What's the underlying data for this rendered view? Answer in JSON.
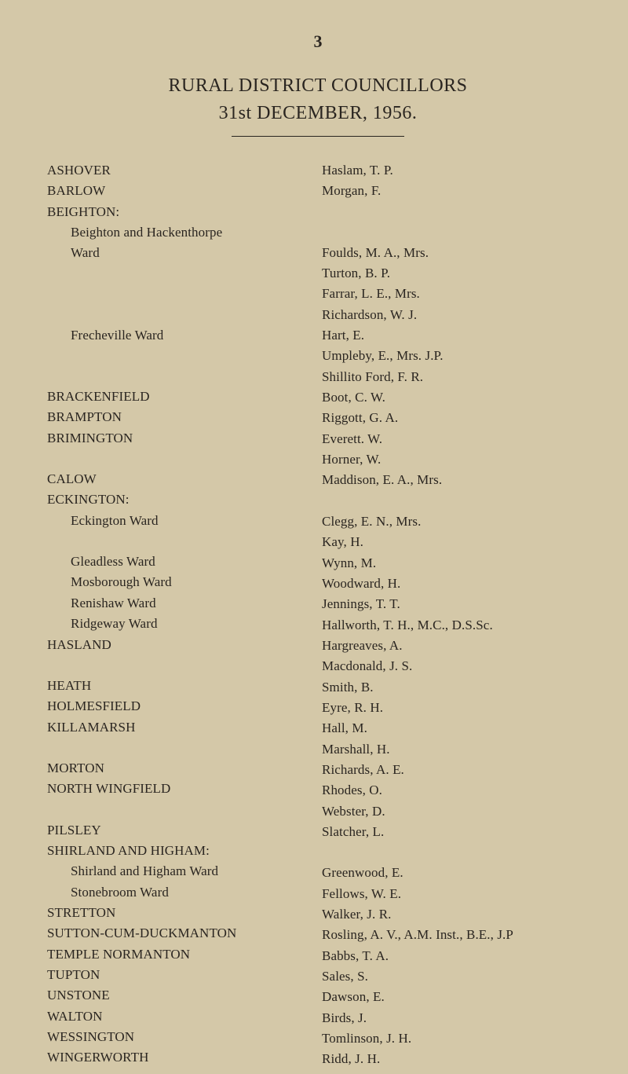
{
  "page_number": "3",
  "title": "RURAL DISTRICT COUNCILLORS",
  "subtitle": "31st  DECEMBER,  1956.",
  "left": [
    "ASHOVER",
    "BARLOW",
    "BEIGHTON:",
    "Beighton and Hackenthorpe",
    "Ward",
    "",
    "",
    "",
    "Frecheville Ward",
    "",
    "",
    "BRACKENFIELD",
    "BRAMPTON",
    "BRIMINGTON",
    "",
    "CALOW",
    "ECKINGTON:",
    "Eckington Ward",
    "",
    "Gleadless Ward",
    "Mosborough Ward",
    "Renishaw Ward",
    "Ridgeway Ward",
    "HASLAND",
    "",
    "HEATH",
    "HOLMESFIELD",
    "KILLAMARSH",
    "",
    "MORTON",
    "NORTH WINGFIELD",
    "",
    "PILSLEY",
    "SHIRLAND AND HIGHAM:",
    "Shirland and Higham Ward",
    "Stonebroom Ward",
    "STRETTON",
    "SUTTON-CUM-DUCKMANTON",
    "TEMPLE NORMANTON",
    "TUPTON",
    "UNSTONE",
    "WALTON",
    "WESSINGTON",
    "WINGERWORTH"
  ],
  "left_indent": [
    false,
    false,
    false,
    true,
    true,
    false,
    false,
    false,
    true,
    false,
    false,
    false,
    false,
    false,
    false,
    false,
    false,
    true,
    false,
    true,
    true,
    true,
    true,
    false,
    false,
    false,
    false,
    false,
    false,
    false,
    false,
    false,
    false,
    false,
    true,
    true,
    false,
    false,
    false,
    false,
    false,
    false,
    false,
    false
  ],
  "right": [
    "Haslam, T. P.",
    "Morgan, F.",
    "",
    "",
    "Foulds, M. A., Mrs.",
    "Turton, B. P.",
    "Farrar, L. E., Mrs.",
    "Richardson, W. J.",
    "Hart, E.",
    "Umpleby, E., Mrs. J.P.",
    "Shillito Ford, F. R.",
    "Boot, C. W.",
    "Riggott, G. A.",
    "Everett. W.",
    "Horner, W.",
    "Maddison, E. A., Mrs.",
    "",
    "Clegg, E. N., Mrs.",
    "Kay, H.",
    "Wynn, M.",
    "Woodward, H.",
    "Jennings, T. T.",
    "Hallworth, T. H., M.C., D.S.Sc.",
    "Hargreaves, A.",
    "Macdonald, J. S.",
    "Smith, B.",
    "Eyre, R. H.",
    "Hall, M.",
    "Marshall, H.",
    "Richards, A. E.",
    "Rhodes, O.",
    "Webster, D.",
    "Slatcher, L.",
    "",
    "Greenwood, E.",
    "Fellows, W. E.",
    "Walker, J. R.",
    "Rosling, A. V., A.M. Inst., B.E., J.P",
    "Babbs, T. A.",
    "Sales, S.",
    "Dawson, E.",
    "Birds, J.",
    "Tomlinson, J. H.",
    "Ridd, J. H."
  ]
}
